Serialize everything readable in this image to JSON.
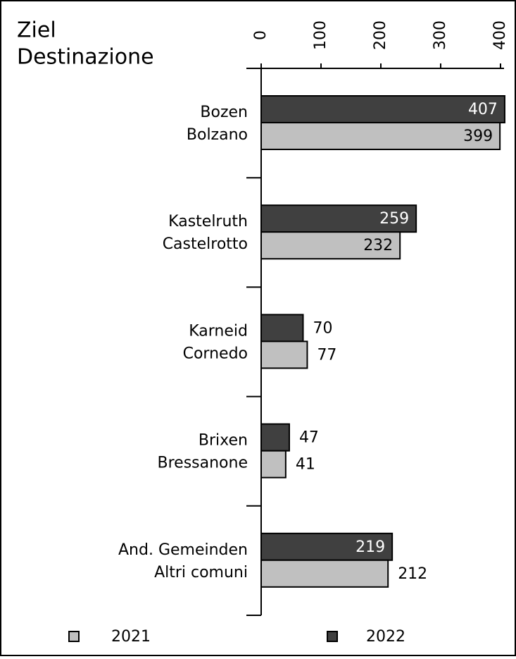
{
  "chart_data": {
    "type": "barh",
    "title": [
      "Ziel",
      "Destinazione"
    ],
    "categories": [
      [
        "Bozen",
        "Bolzano"
      ],
      [
        "Kastelruth",
        "Castelrotto"
      ],
      [
        "Karneid",
        "Cornedo"
      ],
      [
        "Brixen",
        "Bressanone"
      ],
      [
        "And. Gemeinden",
        "Altri comuni"
      ]
    ],
    "series": [
      {
        "name": "2022",
        "color": "#404040",
        "values": [
          407,
          259,
          70,
          47,
          219
        ]
      },
      {
        "name": "2021",
        "color": "#c0c0c0",
        "values": [
          399,
          232,
          77,
          41,
          212
        ]
      }
    ],
    "xlim": [
      0,
      400
    ],
    "xticks": [
      0,
      100,
      200,
      300,
      400
    ]
  }
}
